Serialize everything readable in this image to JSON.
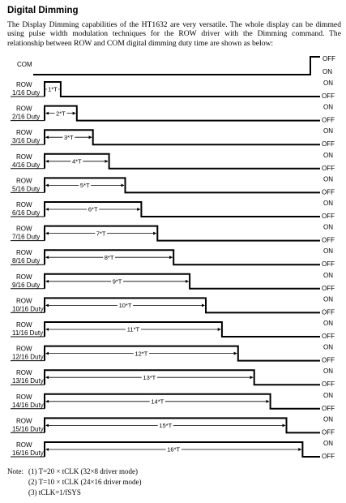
{
  "title": "Digital Dimming",
  "intro": "The Display Dimming capabilities of the HT1632 are very versatile. The whole display can be dimmed using pulse width modulation techniques for the ROW driver with the Dimming command. The relationship between ROW and COM digital dimming duty time are shown as below:",
  "com": {
    "label": "COM",
    "off_label": "OFF",
    "on_label": "ON"
  },
  "row_label": "ROW",
  "rows": [
    {
      "duty": "1/16 Duty",
      "period": "1*T"
    },
    {
      "duty": "2/16 Duty",
      "period": "2*T"
    },
    {
      "duty": "3/16 Duty",
      "period": "3*T"
    },
    {
      "duty": "4/16 Duty",
      "period": "4*T"
    },
    {
      "duty": "5/16 Duty",
      "period": "5*T"
    },
    {
      "duty": "6/16 Duty",
      "period": "6*T"
    },
    {
      "duty": "7/16 Duty",
      "period": "7*T"
    },
    {
      "duty": "8/16 Duty",
      "period": "8*T"
    },
    {
      "duty": "9/16 Duty",
      "period": "9*T"
    },
    {
      "duty": "10/16 Duty",
      "period": "10*T"
    },
    {
      "duty": "11/16 Duty",
      "period": "11*T"
    },
    {
      "duty": "12/16 Duty",
      "period": "12*T"
    },
    {
      "duty": "13/16 Duty",
      "period": "13*T"
    },
    {
      "duty": "14/16 Duty",
      "period": "14*T"
    },
    {
      "duty": "15/16 Duty",
      "period": "15*T"
    },
    {
      "duty": "16/16 Duty",
      "period": "16*T"
    }
  ],
  "state_labels": {
    "on": "ON",
    "off": "OFF"
  },
  "notes": {
    "heading": "Note:",
    "items": [
      "(1) T=20 × tCLK (32×8 driver mode)",
      "(2) T=10 × tCLK (24×16 driver mode)",
      "(3) tCLK=1/fSYS"
    ]
  }
}
